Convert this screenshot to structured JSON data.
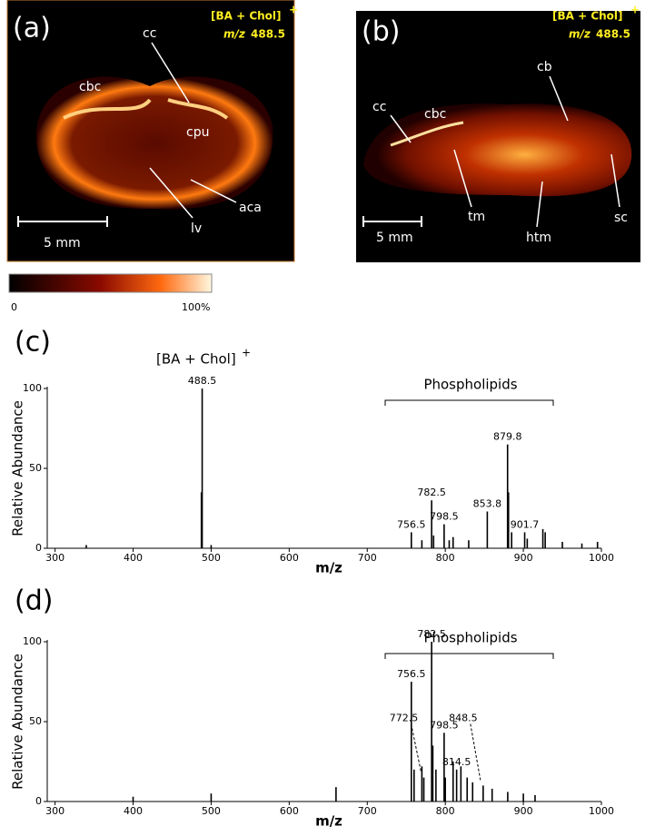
{
  "panels": [
    {
      "label": "(a)",
      "ion": "[BA + Chol]",
      "charge": "+",
      "mz_prefix": "m/z",
      "mz": "488.5",
      "scale": "5 mm",
      "annotations": [
        "cc",
        "cbc",
        "cpu",
        "aca",
        "lv"
      ]
    },
    {
      "label": "(b)",
      "ion": "[BA + Chol]",
      "charge": "+",
      "mz_prefix": "m/z",
      "mz": "488.5",
      "scale": "5 mm",
      "annotations": [
        "cc",
        "cbc",
        "cb",
        "tm",
        "htm",
        "sc"
      ]
    }
  ],
  "colorbar": {
    "min": "0",
    "max": "100%"
  },
  "chart_data": [
    {
      "type": "line",
      "label": "(c)",
      "annotation": "[BA + Chol]",
      "annotation_charge": "+",
      "bracket": "Phospholipids",
      "xlabel": "m/z",
      "ylabel": "Relative Abundance",
      "color": "#000000",
      "xlim": [
        290,
        1000
      ],
      "xticks": [
        300,
        400,
        500,
        600,
        700,
        800,
        900,
        1000
      ],
      "ylim": [
        0,
        100
      ],
      "yticks": [
        0,
        50,
        100
      ],
      "x": [
        340,
        487.5,
        488.5,
        500,
        756.5,
        770,
        782.5,
        785,
        798.5,
        805,
        810,
        830,
        853.8,
        879.8,
        881,
        885,
        901.7,
        905,
        925,
        928,
        950,
        975,
        995
      ],
      "values": [
        2,
        35,
        100,
        2,
        10,
        5,
        30,
        8,
        15,
        5,
        7,
        5,
        23,
        65,
        35,
        10,
        10,
        6,
        12,
        10,
        4,
        3,
        4
      ],
      "labels": [
        null,
        null,
        "488.5",
        null,
        "756.5",
        null,
        "782.5",
        null,
        "798.5",
        null,
        null,
        null,
        "853.8",
        "879.8",
        null,
        null,
        "901.7",
        null,
        null,
        null,
        null,
        null,
        null
      ]
    },
    {
      "type": "line",
      "label": "(d)",
      "bracket": "Phospholipids",
      "xlabel": "m/z",
      "ylabel": "Relative Abundance",
      "color": "#000000",
      "xlim": [
        290,
        1000
      ],
      "xticks": [
        300,
        400,
        500,
        600,
        700,
        800,
        900,
        1000
      ],
      "ylim": [
        0,
        100
      ],
      "yticks": [
        0,
        50,
        100
      ],
      "x": [
        400,
        500,
        660,
        756.5,
        760,
        770,
        772.5,
        782.5,
        784,
        788,
        798.5,
        800,
        810,
        814.5,
        820,
        828,
        835,
        848.5,
        860,
        880,
        900,
        915
      ],
      "values": [
        3,
        5,
        9,
        75,
        20,
        22,
        15,
        100,
        35,
        20,
        43,
        15,
        25,
        20,
        22,
        15,
        12,
        10,
        8,
        6,
        5,
        4
      ],
      "labels": [
        null,
        null,
        null,
        "756.5",
        null,
        null,
        "772.5",
        "782.5",
        null,
        null,
        "798.5",
        null,
        null,
        "814.5",
        null,
        null,
        null,
        "848.5",
        null,
        null,
        null,
        null
      ]
    }
  ]
}
